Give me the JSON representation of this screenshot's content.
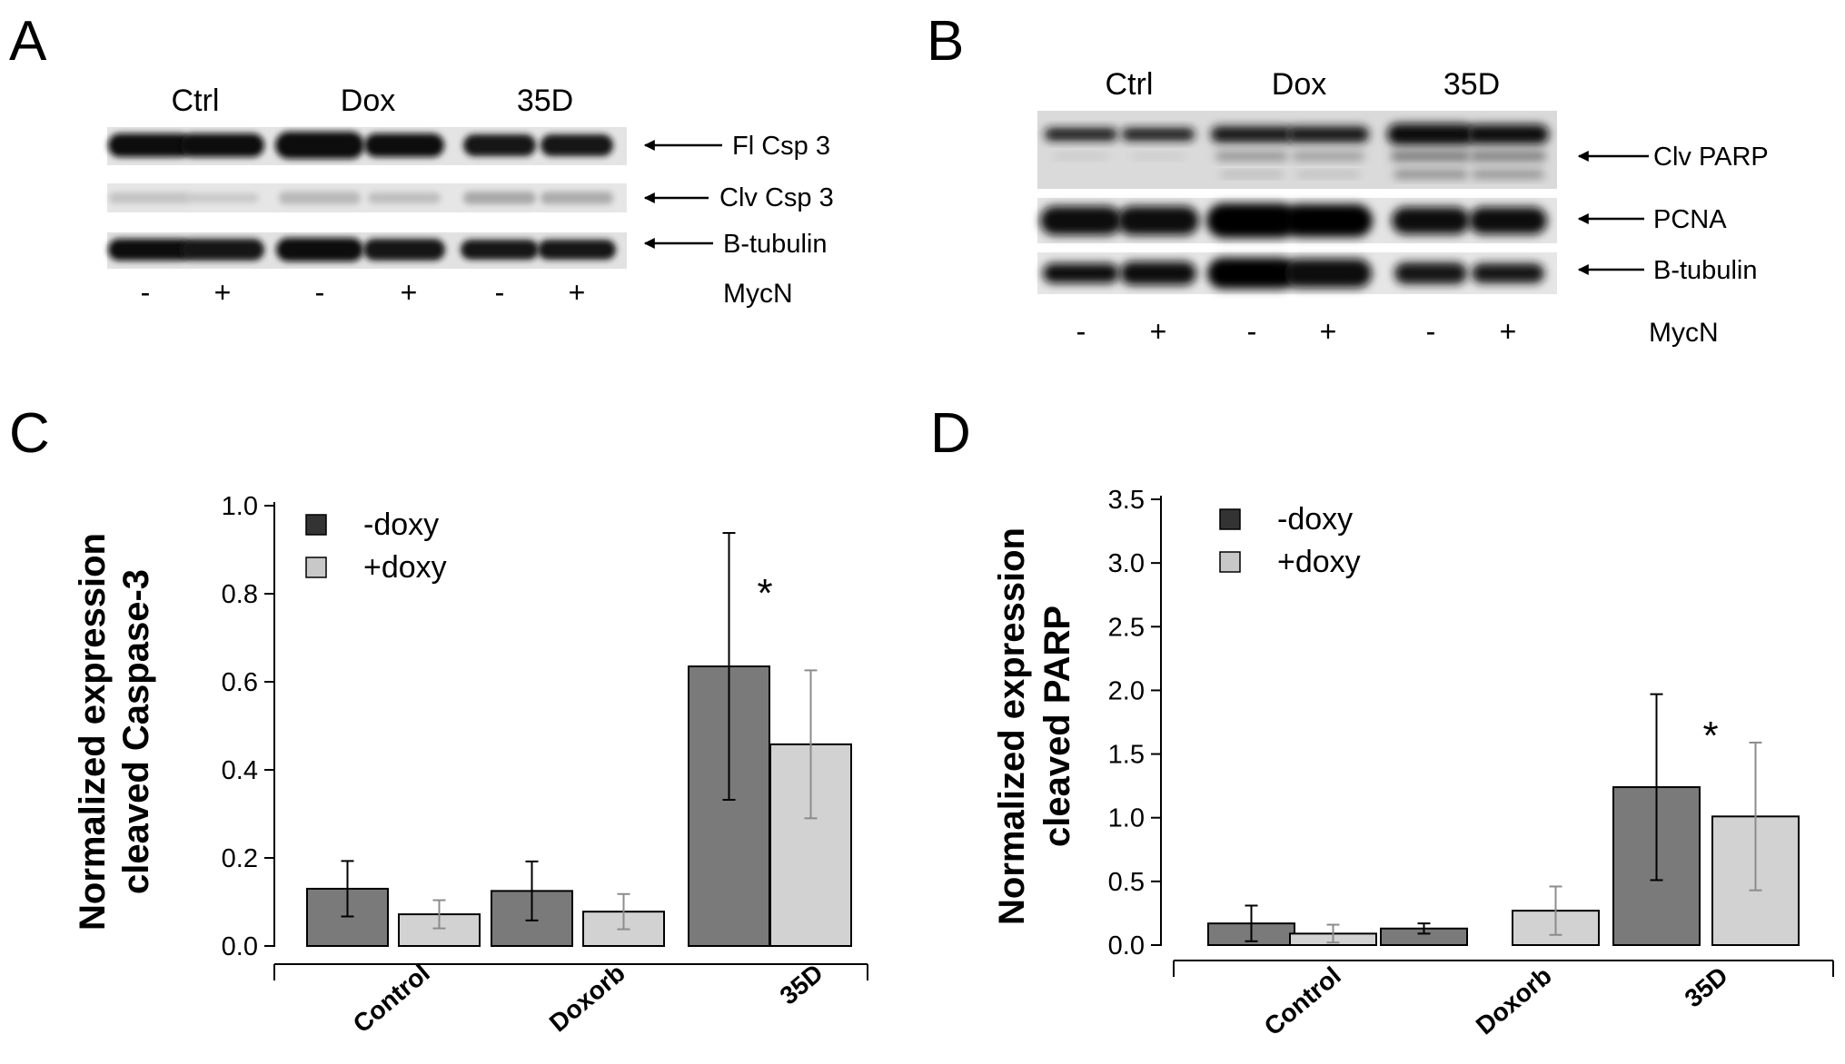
{
  "panels": {
    "A": {
      "letter": "A",
      "groups": [
        "Ctrl",
        "Dox",
        "35D"
      ],
      "rows": [
        "Fl Csp 3",
        "Clv Csp 3",
        "B-tubulin"
      ],
      "signs": [
        "-",
        "+",
        "-",
        "+",
        "-",
        "+"
      ],
      "condition": "MycN"
    },
    "B": {
      "letter": "B",
      "groups": [
        "Ctrl",
        "Dox",
        "35D"
      ],
      "rows": [
        "Clv PARP",
        "PCNA",
        "B-tubulin"
      ],
      "signs": [
        "-",
        "+",
        "-",
        "+",
        "-",
        "+"
      ],
      "condition": "MycN"
    },
    "C": {
      "letter": "C"
    },
    "D": {
      "letter": "D"
    }
  },
  "colors": {
    "minus_doxy": "#7a7a7a",
    "plus_doxy": "#d2d2d2",
    "legend_minus": "#333333",
    "legend_plus": "#c8c8c8",
    "err_minus": "#000000",
    "err_plus": "#8c8c8c"
  },
  "chart_data": [
    {
      "panel": "C",
      "type": "bar",
      "ylabel": [
        "Normalized expression",
        "cleaved Caspase-3"
      ],
      "categories": [
        "Control",
        "Doxorb",
        "35D"
      ],
      "ylim": [
        0,
        1.0
      ],
      "yticks": [
        "0.0",
        "0.2",
        "0.4",
        "0.6",
        "0.8",
        "1.0"
      ],
      "legend": {
        "position": "top-left"
      },
      "series": [
        {
          "name": "-doxy",
          "values": [
            0.13,
            0.125,
            0.635
          ],
          "errors": [
            0.063,
            0.067,
            0.303
          ]
        },
        {
          "name": "+doxy",
          "values": [
            0.072,
            0.078,
            0.458
          ],
          "errors": [
            0.032,
            0.04,
            0.168
          ]
        }
      ],
      "annotations": [
        {
          "text": "*",
          "category": "35D"
        }
      ]
    },
    {
      "panel": "D",
      "type": "bar",
      "ylabel": [
        "Normalized expression",
        "cleaved PARP"
      ],
      "categories": [
        "Control",
        "Doxorb",
        "35D"
      ],
      "ylim": [
        0,
        3.5
      ],
      "yticks": [
        "0.0",
        "0.5",
        "1.0",
        "1.5",
        "2.0",
        "2.5",
        "3.0",
        "3.5"
      ],
      "legend": {
        "position": "top-left"
      },
      "series": [
        {
          "name": "-doxy",
          "values": [
            0.17,
            0.13,
            1.24
          ],
          "errors": [
            0.14,
            0.04,
            0.73
          ]
        },
        {
          "name": "+doxy",
          "values": [
            0.09,
            0.27,
            1.01
          ],
          "errors": [
            0.07,
            0.19,
            0.58
          ]
        }
      ],
      "annotations": [
        {
          "text": "*",
          "category": "35D"
        }
      ]
    }
  ]
}
